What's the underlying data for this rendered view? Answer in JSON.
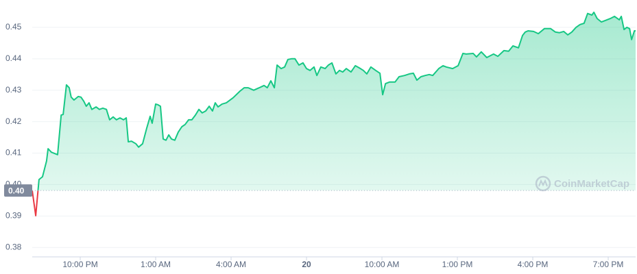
{
  "chart_data": {
    "type": "line",
    "x": [
      20.09,
      20.23,
      20.36,
      20.5,
      20.66,
      20.72,
      20.85,
      21.1,
      21.24,
      21.32,
      21.45,
      21.56,
      21.64,
      21.75,
      21.92,
      22.03,
      22.14,
      22.24,
      22.35,
      22.46,
      22.63,
      22.76,
      22.9,
      23.04,
      23.17,
      23.31,
      23.44,
      23.58,
      23.72,
      23.83,
      23.91,
      24.04,
      24.21,
      24.32,
      24.48,
      24.64,
      24.78,
      24.86,
      25.0,
      25.08,
      25.19,
      25.3,
      25.41,
      25.52,
      25.63,
      25.76,
      25.9,
      26.04,
      26.17,
      26.31,
      26.44,
      26.58,
      26.72,
      26.85,
      26.99,
      27.13,
      27.26,
      27.37,
      27.48,
      27.64,
      27.81,
      28.08,
      28.35,
      28.52,
      28.68,
      28.9,
      29.12,
      29.31,
      29.44,
      29.58,
      29.72,
      29.83,
      29.99,
      30.13,
      30.26,
      30.4,
      30.54,
      30.7,
      30.86,
      31.0,
      31.14,
      31.3,
      31.41,
      31.57,
      31.74,
      31.87,
      32.01,
      32.17,
      32.31,
      32.44,
      32.58,
      32.77,
      32.94,
      33.1,
      33.26,
      33.4,
      33.56,
      33.75,
      33.92,
      34.03,
      34.14,
      34.3,
      34.52,
      34.68,
      34.9,
      35.09,
      35.25,
      35.39,
      35.55,
      35.72,
      35.88,
      36.02,
      36.26,
      36.43,
      36.56,
      36.81,
      37.03,
      37.22,
      37.35,
      37.63,
      37.76,
      37.95,
      38.17,
      38.44,
      38.61,
      38.85,
      39.04,
      39.21,
      39.43,
      39.59,
      39.7,
      39.81,
      40.03,
      40.22,
      40.46,
      40.71,
      40.9,
      41.06,
      41.23,
      41.39,
      41.55,
      41.72,
      41.88,
      42.04,
      42.18,
      42.35,
      42.43,
      42.56,
      42.73,
      42.89,
      43.08,
      43.25,
      43.44,
      43.52,
      43.63,
      43.74,
      43.85,
      43.93,
      44.04,
      44.09
    ],
    "series": [
      {
        "color": "#16c784",
        "values": [
          0.3981,
          0.3901,
          0.4016,
          0.4025,
          0.4075,
          0.4114,
          0.4103,
          0.4095,
          0.4221,
          0.4223,
          0.4317,
          0.4308,
          0.4278,
          0.4269,
          0.428,
          0.4278,
          0.4265,
          0.4249,
          0.426,
          0.4239,
          0.4247,
          0.4239,
          0.4243,
          0.4239,
          0.4206,
          0.4215,
          0.4206,
          0.4212,
          0.4206,
          0.4212,
          0.4136,
          0.4138,
          0.413,
          0.4119,
          0.413,
          0.4178,
          0.4217,
          0.4195,
          0.4256,
          0.4254,
          0.4249,
          0.4145,
          0.4141,
          0.4158,
          0.4145,
          0.4141,
          0.4167,
          0.4184,
          0.4191,
          0.4206,
          0.4206,
          0.4221,
          0.4239,
          0.4228,
          0.4234,
          0.4249,
          0.4234,
          0.426,
          0.4247,
          0.4256,
          0.426,
          0.4276,
          0.4297,
          0.4308,
          0.4308,
          0.43,
          0.4308,
          0.4315,
          0.4308,
          0.433,
          0.4308,
          0.438,
          0.4369,
          0.4374,
          0.4398,
          0.44,
          0.44,
          0.438,
          0.4387,
          0.4369,
          0.4363,
          0.4374,
          0.4347,
          0.4374,
          0.4369,
          0.438,
          0.4387,
          0.4352,
          0.4363,
          0.4358,
          0.4369,
          0.4358,
          0.4378,
          0.4371,
          0.4363,
          0.4352,
          0.4374,
          0.4363,
          0.4354,
          0.4286,
          0.4321,
          0.4326,
          0.4326,
          0.4343,
          0.4347,
          0.4352,
          0.4354,
          0.4332,
          0.4343,
          0.4347,
          0.435,
          0.4347,
          0.4369,
          0.4378,
          0.4374,
          0.4369,
          0.4378,
          0.4417,
          0.4415,
          0.4417,
          0.4406,
          0.4422,
          0.4404,
          0.4415,
          0.4408,
          0.4426,
          0.4424,
          0.4441,
          0.4435,
          0.4474,
          0.4485,
          0.4489,
          0.4487,
          0.448,
          0.4496,
          0.4496,
          0.4485,
          0.4483,
          0.4487,
          0.4476,
          0.4485,
          0.45,
          0.4509,
          0.4513,
          0.4544,
          0.4539,
          0.4548,
          0.4528,
          0.4517,
          0.4522,
          0.4528,
          0.4535,
          0.4524,
          0.4535,
          0.4493,
          0.45,
          0.4496,
          0.4461,
          0.4489,
          0.4489
        ]
      }
    ],
    "below_color": "#ea3943",
    "baseline": {
      "value": 0.3981,
      "label": "0.40"
    },
    "xlim": [
      20.09,
      44.09
    ],
    "xticks": [
      {
        "value": 22,
        "label": "10:00 PM"
      },
      {
        "value": 25,
        "label": "1:00 AM"
      },
      {
        "value": 28,
        "label": "4:00 AM"
      },
      {
        "value": 31,
        "label": "20"
      },
      {
        "value": 34,
        "label": "10:00 AM"
      },
      {
        "value": 37,
        "label": "1:00 PM"
      },
      {
        "value": 40,
        "label": "4:00 PM"
      },
      {
        "value": 43,
        "label": "7:00 PM"
      }
    ],
    "ylim": [
      0.377,
      0.4587
    ],
    "yticks": [
      0.38,
      0.39,
      {
        "value": 0.4,
        "label": "0.40"
      },
      0.41,
      0.42,
      0.43,
      0.44,
      0.45
    ],
    "grid": true,
    "watermark": "CoinMarketCap"
  }
}
